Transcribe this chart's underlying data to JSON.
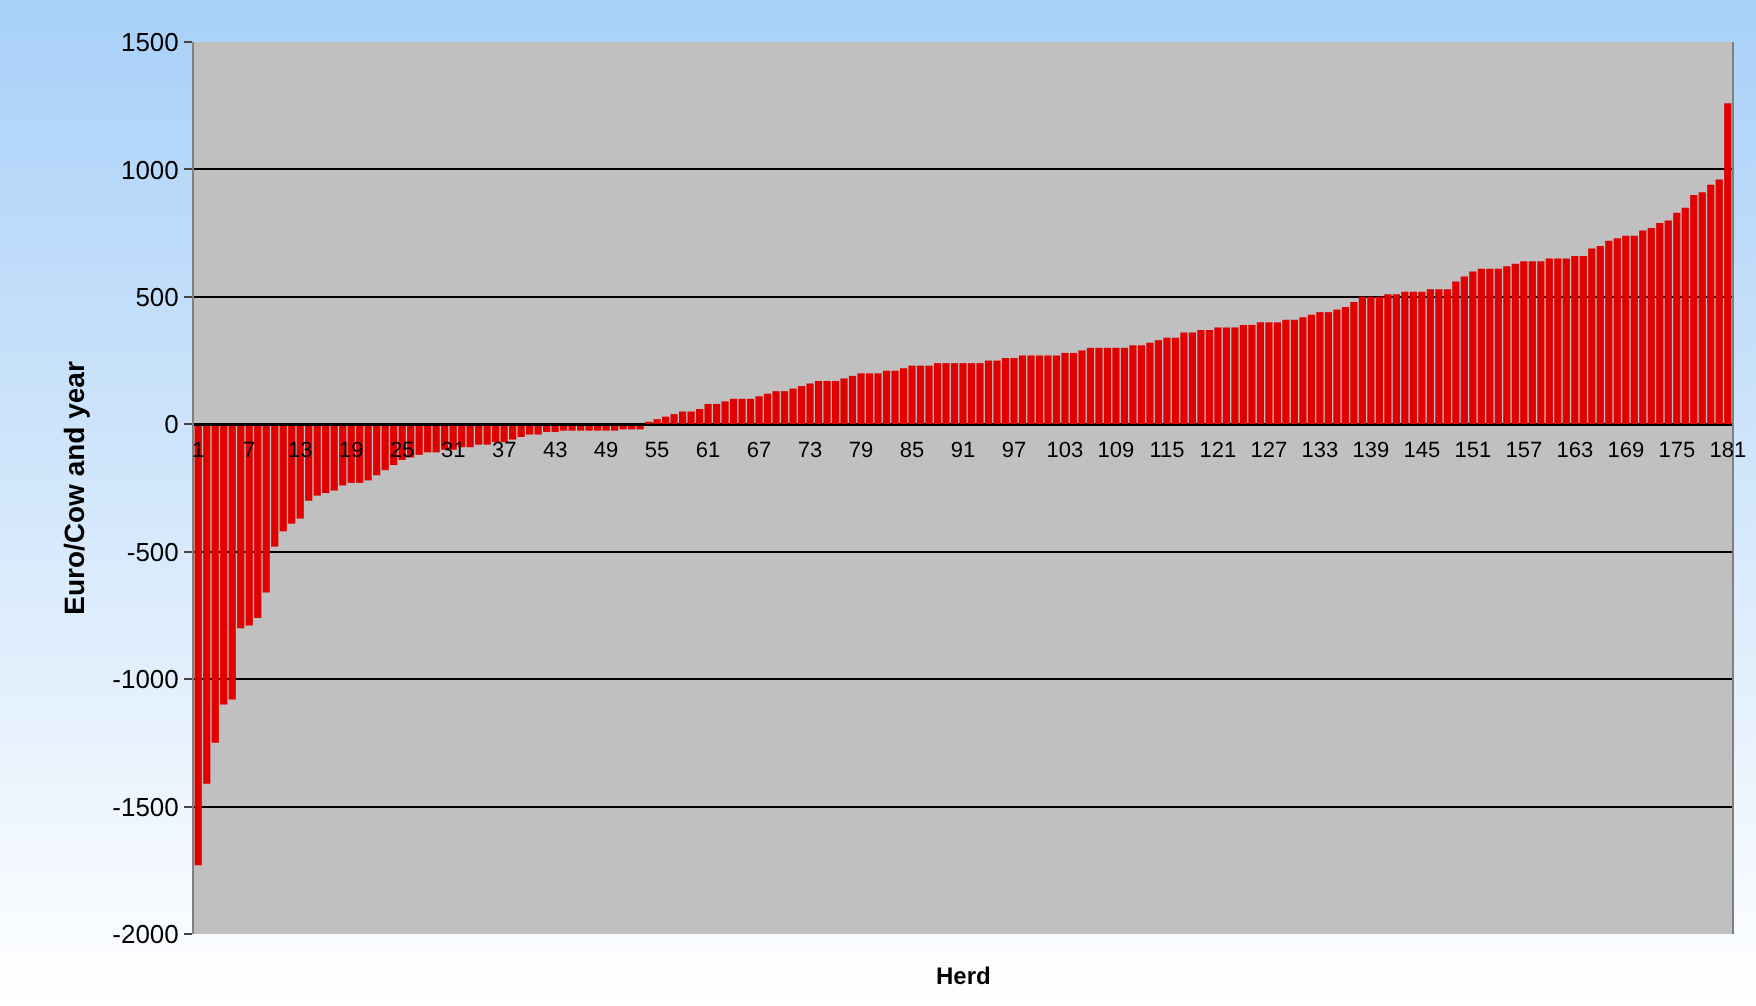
{
  "chart_data": {
    "type": "bar",
    "xlabel": "Herd",
    "ylabel": "Euro/Cow and year",
    "categories": [
      "1",
      null,
      null,
      null,
      null,
      null,
      "7",
      null,
      null,
      null,
      null,
      null,
      "13",
      null,
      null,
      null,
      null,
      null,
      "19",
      null,
      null,
      null,
      null,
      null,
      "25",
      null,
      null,
      null,
      null,
      null,
      "31",
      null,
      null,
      null,
      null,
      null,
      "37",
      null,
      null,
      null,
      null,
      null,
      "43",
      null,
      null,
      null,
      null,
      null,
      "49",
      null,
      null,
      null,
      null,
      null,
      "55",
      null,
      null,
      null,
      null,
      null,
      "61",
      null,
      null,
      null,
      null,
      null,
      "67",
      null,
      null,
      null,
      null,
      null,
      "73",
      null,
      null,
      null,
      null,
      null,
      "79",
      null,
      null,
      null,
      null,
      null,
      "85",
      null,
      null,
      null,
      null,
      null,
      "91",
      null,
      null,
      null,
      null,
      null,
      "97",
      null,
      null,
      null,
      null,
      null,
      "103",
      null,
      null,
      null,
      null,
      null,
      "109",
      null,
      null,
      null,
      null,
      null,
      "115",
      null,
      null,
      null,
      null,
      null,
      "121",
      null,
      null,
      null,
      null,
      null,
      "127",
      null,
      null,
      null,
      null,
      null,
      "133",
      null,
      null,
      null,
      null,
      null,
      "139",
      null,
      null,
      null,
      null,
      null,
      "145",
      null,
      null,
      null,
      null,
      null,
      "151",
      null,
      null,
      null,
      null,
      null,
      "157",
      null,
      null,
      null,
      null,
      null,
      "163",
      null,
      null,
      null,
      null,
      null,
      "169",
      null,
      null,
      null,
      null,
      null,
      "175",
      null,
      null,
      null,
      null,
      null,
      "181"
    ],
    "values": [
      -1730,
      -1410,
      -1250,
      -1100,
      -1080,
      -800,
      -790,
      -760,
      -660,
      -480,
      -420,
      -390,
      -370,
      -300,
      -280,
      -270,
      -260,
      -240,
      -230,
      -230,
      -220,
      -200,
      -180,
      -160,
      -140,
      -130,
      -120,
      -110,
      -110,
      -100,
      -100,
      -90,
      -90,
      -80,
      -80,
      -70,
      -70,
      -60,
      -50,
      -40,
      -40,
      -30,
      -30,
      -25,
      -25,
      -25,
      -25,
      -25,
      -25,
      -25,
      -20,
      -20,
      -20,
      10,
      20,
      30,
      40,
      50,
      50,
      60,
      80,
      80,
      90,
      100,
      100,
      100,
      110,
      120,
      130,
      130,
      140,
      150,
      160,
      170,
      170,
      170,
      180,
      190,
      200,
      200,
      200,
      210,
      210,
      220,
      230,
      230,
      230,
      240,
      240,
      240,
      240,
      240,
      240,
      250,
      250,
      260,
      260,
      270,
      270,
      270,
      270,
      270,
      280,
      280,
      290,
      300,
      300,
      300,
      300,
      300,
      310,
      310,
      320,
      330,
      340,
      340,
      360,
      360,
      370,
      370,
      380,
      380,
      380,
      390,
      390,
      400,
      400,
      400,
      410,
      410,
      420,
      430,
      440,
      440,
      450,
      460,
      480,
      500,
      500,
      500,
      510,
      510,
      520,
      520,
      520,
      530,
      530,
      530,
      560,
      580,
      600,
      610,
      610,
      610,
      620,
      630,
      640,
      640,
      640,
      650,
      650,
      650,
      660,
      660,
      690,
      700,
      720,
      730,
      740,
      740,
      760,
      770,
      790,
      800,
      830,
      850,
      900,
      910,
      940,
      960,
      1260
    ],
    "color": "#e00000",
    "ylim": [
      -2000,
      1500
    ],
    "yticks": [
      -2000,
      -1500,
      -1000,
      -500,
      0,
      500,
      1000,
      1500
    ],
    "grid": "y"
  }
}
